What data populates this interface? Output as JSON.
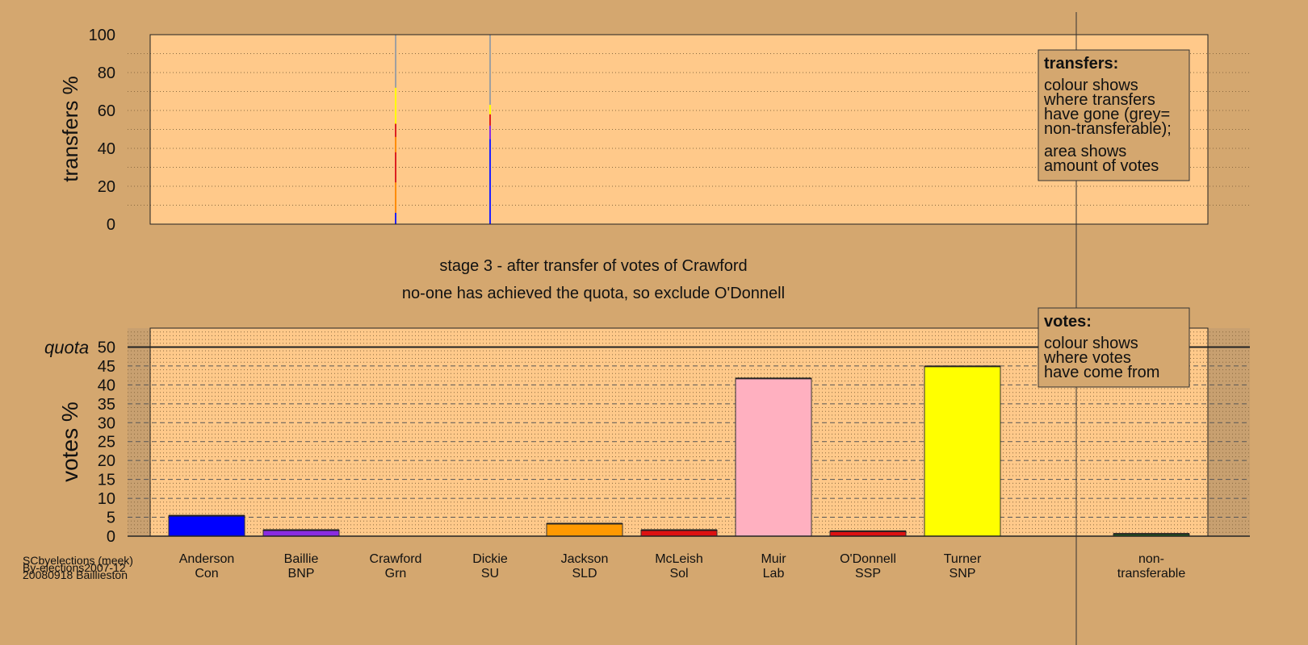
{
  "top_chart": {
    "ylabel": "transfers %",
    "yticks": [
      "0",
      "20",
      "40",
      "60",
      "80",
      "100"
    ]
  },
  "captions": {
    "stage": "stage 3 - after transfer of votes of Crawford",
    "status": "no-one has achieved the quota, so exclude O'Donnell"
  },
  "bottom_chart": {
    "ylabel": "votes %",
    "quota_label": "quota",
    "yticks": [
      "0",
      "5",
      "10",
      "15",
      "20",
      "25",
      "30",
      "35",
      "40",
      "45",
      "50"
    ]
  },
  "legend_transfers": {
    "title": "transfers:",
    "lines_a": [
      "colour shows",
      "where transfers",
      "have gone (grey=",
      "non-transferable);"
    ],
    "lines_b": [
      "area shows",
      "amount of votes"
    ]
  },
  "legend_votes": {
    "title": "votes:",
    "lines": [
      "colour shows",
      "where votes",
      "have come from"
    ]
  },
  "footer": {
    "line1": "SCbyelections (meek)",
    "line2": "By-elections2007-12",
    "line3": "20080918 Baillieston"
  },
  "chart_data": [
    {
      "type": "bar",
      "title": "",
      "ylabel": "transfers %",
      "ylim": [
        0,
        100
      ],
      "grid": true,
      "legend": "top-right",
      "bars": [
        {
          "candidate": "Crawford",
          "segments": [
            {
              "color": "#2020ff",
              "from": 0,
              "to": 6
            },
            {
              "color": "#ff8c00",
              "from": 6,
              "to": 22
            },
            {
              "color": "#dd2020",
              "from": 22,
              "to": 38
            },
            {
              "color": "#ff8c00",
              "from": 38,
              "to": 46
            },
            {
              "color": "#dd2020",
              "from": 46,
              "to": 53
            },
            {
              "color": "#ffff00",
              "from": 53,
              "to": 72
            },
            {
              "color": "#a0a0a0",
              "from": 72,
              "to": 100
            }
          ]
        },
        {
          "candidate": "Dickie",
          "segments": [
            {
              "color": "#2020ff",
              "from": 0,
              "to": 45
            },
            {
              "color": "#8a2be2",
              "from": 45,
              "to": 52
            },
            {
              "color": "#dd2020",
              "from": 52,
              "to": 58
            },
            {
              "color": "#ffff00",
              "from": 58,
              "to": 63
            },
            {
              "color": "#a0a0a0",
              "from": 63,
              "to": 100
            }
          ]
        }
      ]
    },
    {
      "type": "bar",
      "title": "",
      "ylabel": "votes %",
      "ylim": [
        0,
        55
      ],
      "quota": 50,
      "grid": true,
      "legend": "top-right",
      "categories": [
        "Anderson\nCon",
        "Baillie\nBNP",
        "Crawford\nGrn",
        "Dickie\nSU",
        "Jackson\nSLD",
        "McLeish\nSol",
        "Muir\nLab",
        "O'Donnell\nSSP",
        "Turner\nSNP",
        "non-\ntransferable"
      ],
      "values": [
        5.4,
        1.6,
        0,
        0,
        3.3,
        1.6,
        41.7,
        1.3,
        44.9,
        0.6
      ],
      "colors": [
        "#0000ff",
        "#8a2be2",
        "#00aa00",
        "#888888",
        "#ff9900",
        "#dd1111",
        "#ffb0c0",
        "#dd1111",
        "#ffff00",
        "#226622"
      ]
    }
  ]
}
